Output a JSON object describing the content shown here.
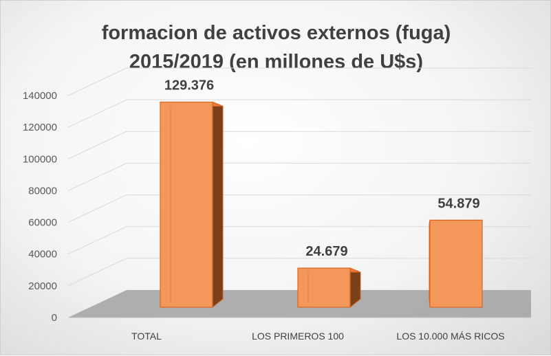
{
  "chart_data": {
    "type": "bar",
    "title_lines": [
      "formacion de activos externos (fuga)",
      "2015/2019 (en millones de U$s)"
    ],
    "categories": [
      "TOTAL",
      "LOS PRIMEROS 100",
      "LOS 10.000 MÁS RICOS"
    ],
    "values": [
      129376,
      24679,
      54879
    ],
    "data_labels": [
      "129.376",
      "24.679",
      "54.879"
    ],
    "ylim": [
      0,
      140000
    ],
    "y_ticks": [
      "0",
      "20000",
      "40000",
      "60000",
      "80000",
      "100000",
      "120000",
      "140000"
    ],
    "grid": true,
    "style": "3d-column",
    "colors": {
      "bar_front": "#f4975a",
      "bar_side": "#7b3f1a",
      "bar_top": "#e8793a",
      "bar_edge": "#d9651f",
      "floor": "#a6a6a6",
      "grid": "#d9d9d9"
    }
  }
}
